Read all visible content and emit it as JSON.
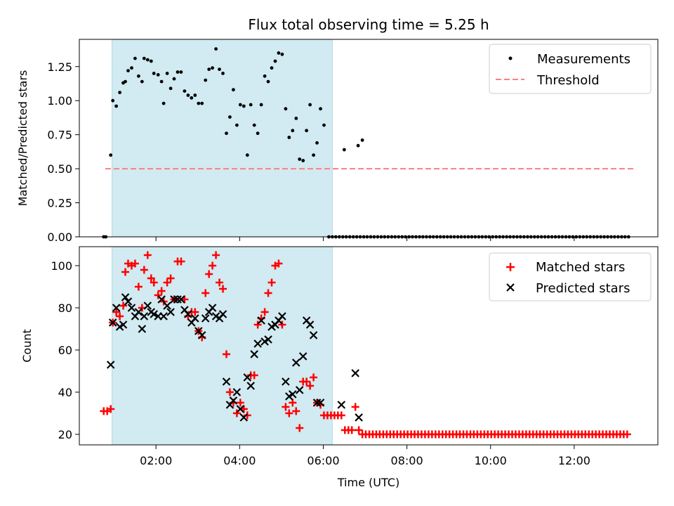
{
  "chart_data": [
    {
      "type": "scatter",
      "title": "Flux total observing time = 5.25 h",
      "xlabel": "",
      "ylabel": "Matched/Predicted stars",
      "xlim": [
        "00:10",
        "14:00"
      ],
      "ylim": [
        0,
        1.45
      ],
      "yticks": [
        "0.00",
        "0.25",
        "0.50",
        "0.75",
        "1.00",
        "1.25"
      ],
      "xticks": [
        "02:00",
        "04:00",
        "06:00",
        "08:00",
        "10:00",
        "12:00"
      ],
      "grid": false,
      "legend_position": "top-right",
      "observing_window": [
        "00:55",
        "06:10"
      ],
      "colors": {
        "window": "#add8e6",
        "measurements": "#000000",
        "threshold": "#ff7f7f"
      },
      "threshold": {
        "name": "Threshold",
        "value": 0.5,
        "x_range": [
          "00:45",
          "13:20"
        ]
      },
      "series": [
        {
          "name": "Measurements",
          "points": [
            [
              "00:45",
              0.0
            ],
            [
              "00:48",
              0.0
            ],
            [
              "00:55",
              0.6
            ],
            [
              "00:58",
              1.0
            ],
            [
              "01:03",
              0.96
            ],
            [
              "01:08",
              1.06
            ],
            [
              "01:13",
              1.13
            ],
            [
              "01:16",
              1.14
            ],
            [
              "01:20",
              1.22
            ],
            [
              "01:25",
              1.24
            ],
            [
              "01:30",
              1.31
            ],
            [
              "01:35",
              1.18
            ],
            [
              "01:40",
              1.14
            ],
            [
              "01:43",
              1.31
            ],
            [
              "01:48",
              1.3
            ],
            [
              "01:53",
              1.29
            ],
            [
              "01:57",
              1.2
            ],
            [
              "02:03",
              1.19
            ],
            [
              "02:08",
              1.14
            ],
            [
              "02:11",
              0.98
            ],
            [
              "02:16",
              1.2
            ],
            [
              "02:21",
              1.09
            ],
            [
              "02:26",
              1.16
            ],
            [
              "02:31",
              1.21
            ],
            [
              "02:36",
              1.21
            ],
            [
              "02:41",
              1.07
            ],
            [
              "02:46",
              1.04
            ],
            [
              "02:51",
              1.02
            ],
            [
              "02:56",
              1.04
            ],
            [
              "03:01",
              0.98
            ],
            [
              "03:06",
              0.98
            ],
            [
              "03:11",
              1.15
            ],
            [
              "03:16",
              1.23
            ],
            [
              "03:21",
              1.24
            ],
            [
              "03:26",
              1.38
            ],
            [
              "03:31",
              1.23
            ],
            [
              "03:36",
              1.2
            ],
            [
              "03:41",
              0.76
            ],
            [
              "03:46",
              0.88
            ],
            [
              "03:51",
              1.08
            ],
            [
              "03:56",
              0.82
            ],
            [
              "04:01",
              0.97
            ],
            [
              "04:06",
              0.96
            ],
            [
              "04:11",
              0.6
            ],
            [
              "04:16",
              0.97
            ],
            [
              "04:21",
              0.82
            ],
            [
              "04:26",
              0.76
            ],
            [
              "04:31",
              0.97
            ],
            [
              "04:36",
              1.18
            ],
            [
              "04:41",
              1.14
            ],
            [
              "04:46",
              1.24
            ],
            [
              "04:51",
              1.29
            ],
            [
              "04:56",
              1.35
            ],
            [
              "05:01",
              1.34
            ],
            [
              "05:06",
              0.94
            ],
            [
              "05:11",
              0.73
            ],
            [
              "05:16",
              0.78
            ],
            [
              "05:21",
              0.87
            ],
            [
              "05:26",
              0.57
            ],
            [
              "05:31",
              0.56
            ],
            [
              "05:36",
              0.78
            ],
            [
              "05:41",
              0.97
            ],
            [
              "05:46",
              0.6
            ],
            [
              "05:51",
              0.69
            ],
            [
              "05:56",
              0.94
            ],
            [
              "06:01",
              0.82
            ],
            [
              "06:30",
              0.64
            ],
            [
              "06:50",
              0.67
            ],
            [
              "06:56",
              0.71
            ]
          ],
          "zero_range": [
            "06:08",
            "13:20"
          ]
        }
      ]
    },
    {
      "type": "scatter",
      "title": "",
      "xlabel": "Time (UTC)",
      "ylabel": "Count",
      "xlim": [
        "00:10",
        "14:00"
      ],
      "ylim": [
        15,
        109
      ],
      "yticks": [
        "20",
        "40",
        "60",
        "80",
        "100"
      ],
      "xticks": [
        "02:00",
        "04:00",
        "06:00",
        "08:00",
        "10:00",
        "12:00"
      ],
      "grid": false,
      "legend_position": "top-right",
      "observing_window": [
        "00:55",
        "06:10"
      ],
      "colors": {
        "window": "#add8e6",
        "matched": "#ff0000",
        "predicted": "#000000"
      },
      "series": [
        {
          "name": "Matched stars",
          "points": [
            [
              "00:45",
              31
            ],
            [
              "00:50",
              31
            ],
            [
              "00:55",
              32
            ],
            [
              "00:58",
              73
            ],
            [
              "01:03",
              78
            ],
            [
              "01:08",
              76
            ],
            [
              "01:13",
              81
            ],
            [
              "01:16",
              97
            ],
            [
              "01:20",
              101
            ],
            [
              "01:25",
              100
            ],
            [
              "01:30",
              101
            ],
            [
              "01:35",
              90
            ],
            [
              "01:40",
              80
            ],
            [
              "01:43",
              98
            ],
            [
              "01:48",
              105
            ],
            [
              "01:53",
              94
            ],
            [
              "01:57",
              92
            ],
            [
              "02:03",
              86
            ],
            [
              "02:08",
              88
            ],
            [
              "02:11",
              83
            ],
            [
              "02:16",
              92
            ],
            [
              "02:21",
              94
            ],
            [
              "02:26",
              84
            ],
            [
              "02:31",
              102
            ],
            [
              "02:36",
              102
            ],
            [
              "02:41",
              84
            ],
            [
              "02:46",
              76
            ],
            [
              "02:51",
              78
            ],
            [
              "02:56",
              78
            ],
            [
              "03:01",
              69
            ],
            [
              "03:06",
              66
            ],
            [
              "03:11",
              87
            ],
            [
              "03:16",
              96
            ],
            [
              "03:21",
              100
            ],
            [
              "03:26",
              105
            ],
            [
              "03:31",
              92
            ],
            [
              "03:36",
              89
            ],
            [
              "03:41",
              58
            ],
            [
              "03:46",
              40
            ],
            [
              "03:51",
              35
            ],
            [
              "03:56",
              30
            ],
            [
              "04:01",
              35
            ],
            [
              "04:06",
              32
            ],
            [
              "04:11",
              29
            ],
            [
              "04:16",
              48
            ],
            [
              "04:21",
              48
            ],
            [
              "04:26",
              72
            ],
            [
              "04:31",
              75
            ],
            [
              "04:36",
              78
            ],
            [
              "04:41",
              87
            ],
            [
              "04:46",
              92
            ],
            [
              "04:51",
              100
            ],
            [
              "04:56",
              101
            ],
            [
              "05:01",
              72
            ],
            [
              "05:06",
              33
            ],
            [
              "05:11",
              30
            ],
            [
              "05:16",
              35
            ],
            [
              "05:21",
              31
            ],
            [
              "05:26",
              23
            ],
            [
              "05:31",
              45
            ],
            [
              "05:36",
              45
            ],
            [
              "05:41",
              43
            ],
            [
              "05:46",
              47
            ],
            [
              "05:51",
              35
            ],
            [
              "05:56",
              34
            ],
            [
              "06:01",
              29
            ],
            [
              "06:06",
              29
            ],
            [
              "06:11",
              29
            ],
            [
              "06:16",
              29
            ],
            [
              "06:21",
              29
            ],
            [
              "06:26",
              29
            ],
            [
              "06:31",
              22
            ],
            [
              "06:36",
              22
            ],
            [
              "06:41",
              22
            ],
            [
              "06:46",
              33
            ],
            [
              "06:51",
              22
            ]
          ],
          "constant_range": {
            "value": 20,
            "range": [
              "06:56",
              "13:20"
            ]
          }
        },
        {
          "name": "Predicted stars",
          "points": [
            [
              "00:55",
              53
            ],
            [
              "00:58",
              73
            ],
            [
              "01:03",
              80
            ],
            [
              "01:08",
              71
            ],
            [
              "01:13",
              72
            ],
            [
              "01:16",
              85
            ],
            [
              "01:20",
              83
            ],
            [
              "01:25",
              80
            ],
            [
              "01:30",
              76
            ],
            [
              "01:35",
              78
            ],
            [
              "01:40",
              70
            ],
            [
              "01:43",
              76
            ],
            [
              "01:48",
              81
            ],
            [
              "01:53",
              78
            ],
            [
              "01:57",
              77
            ],
            [
              "02:03",
              76
            ],
            [
              "02:08",
              84
            ],
            [
              "02:11",
              76
            ],
            [
              "02:16",
              81
            ],
            [
              "02:21",
              78
            ],
            [
              "02:26",
              84
            ],
            [
              "02:31",
              84
            ],
            [
              "02:36",
              84
            ],
            [
              "02:41",
              79
            ],
            [
              "02:46",
              77
            ],
            [
              "02:51",
              73
            ],
            [
              "02:56",
              75
            ],
            [
              "03:01",
              69
            ],
            [
              "03:06",
              67
            ],
            [
              "03:11",
              75
            ],
            [
              "03:16",
              78
            ],
            [
              "03:21",
              80
            ],
            [
              "03:26",
              76
            ],
            [
              "03:31",
              75
            ],
            [
              "03:36",
              77
            ],
            [
              "03:41",
              45
            ],
            [
              "03:46",
              34
            ],
            [
              "03:51",
              36
            ],
            [
              "03:56",
              40
            ],
            [
              "04:01",
              32
            ],
            [
              "04:06",
              28
            ],
            [
              "04:11",
              47
            ],
            [
              "04:16",
              43
            ],
            [
              "04:21",
              58
            ],
            [
              "04:26",
              63
            ],
            [
              "04:31",
              74
            ],
            [
              "04:36",
              64
            ],
            [
              "04:41",
              65
            ],
            [
              "04:46",
              71
            ],
            [
              "04:51",
              72
            ],
            [
              "04:56",
              74
            ],
            [
              "05:01",
              76
            ],
            [
              "05:06",
              45
            ],
            [
              "05:11",
              38
            ],
            [
              "05:16",
              39
            ],
            [
              "05:21",
              54
            ],
            [
              "05:26",
              41
            ],
            [
              "05:31",
              57
            ],
            [
              "05:36",
              74
            ],
            [
              "05:41",
              72
            ],
            [
              "05:46",
              67
            ],
            [
              "05:51",
              35
            ],
            [
              "05:56",
              35
            ],
            [
              "06:26",
              34
            ],
            [
              "06:46",
              49
            ],
            [
              "06:51",
              28
            ]
          ]
        }
      ]
    }
  ]
}
